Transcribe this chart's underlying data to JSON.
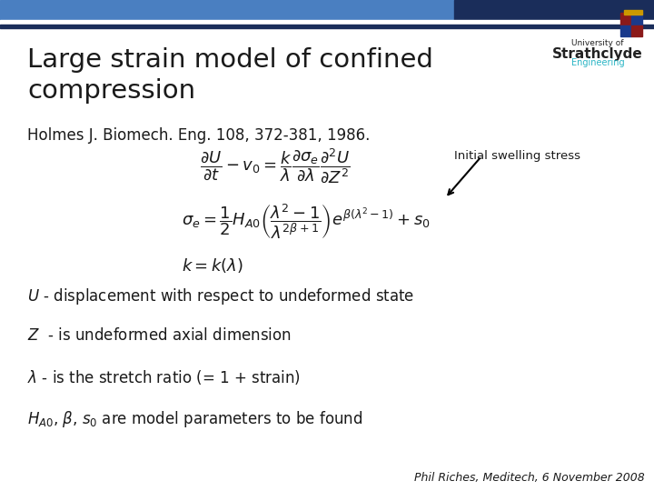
{
  "title": "Large strain model of confined\ncompression",
  "reference": "Holmes J. Biomech. Eng. 108, 372-381, 1986.",
  "eq1": "$\\dfrac{\\partial U}{\\partial t} - v_0 = \\dfrac{k}{\\lambda} \\dfrac{\\partial \\sigma_e}{\\partial \\lambda} \\dfrac{\\partial^2 U}{\\partial Z^2}$",
  "eq2": "$\\sigma_e = \\dfrac{1}{2} H_{A0} \\left( \\dfrac{\\lambda^2 - 1}{\\lambda^{2\\beta+1}} \\right) e^{\\beta(\\lambda^2 - 1)} + s_0$",
  "eq3": "$k = k(\\lambda)$",
  "annotation": "Initial swelling stress",
  "line1": "$U$ - displacement with respect to undeformed state",
  "line2": "$Z$  - is undeformed axial dimension",
  "line3": "$\\lambda$ - is the stretch ratio (= 1 + strain)",
  "line4": "$H_{A0}$, $\\beta$, $s_0$ are model parameters to be found",
  "footer": "Phil Riches, Meditech, 6 November 2008",
  "bg_color": "#ffffff",
  "title_color": "#1a1a1a",
  "text_color": "#1a1a1a",
  "header_blue": "#4a7fc1",
  "header_dark": "#1a2d5a",
  "title_fontsize": 21,
  "ref_fontsize": 12,
  "eq_fontsize": 13,
  "body_fontsize": 12,
  "footer_fontsize": 9,
  "logo_text_color": "#222222",
  "logo_eng_color": "#2ab5c5"
}
